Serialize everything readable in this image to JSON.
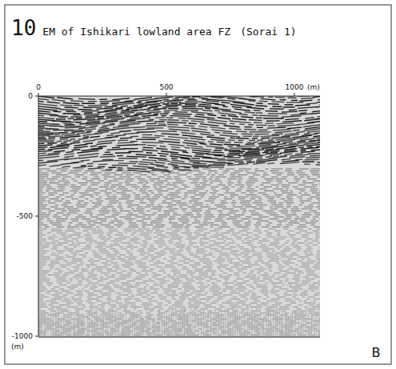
{
  "chart_data": {
    "type": "seismic_section",
    "number": "10",
    "title": "EM of Ishikari lowland area FZ",
    "subtitle": "(Sorai 1)",
    "x_unit": "(m)",
    "y_unit": "(m)",
    "xlim": [
      0,
      1100
    ],
    "xticks": [
      0,
      500,
      1000
    ],
    "ylim": [
      -1000,
      0
    ],
    "yticks": [
      0,
      -500,
      -1000
    ],
    "panel": "B",
    "grid": false
  }
}
